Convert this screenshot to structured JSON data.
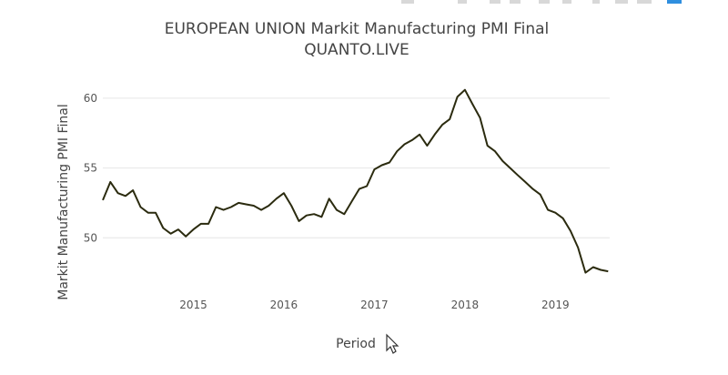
{
  "chart_data": {
    "type": "line",
    "title": "EUROPEAN UNION Markit Manufacturing PMI Final",
    "subtitle": "QUANTO.LIVE",
    "xlabel": "Period",
    "ylabel": "Markit Manufacturing PMI Final",
    "xlim": [
      2014.0,
      2019.6
    ],
    "ylim": [
      46.3,
      61.3
    ],
    "x_ticks": [
      {
        "value": 2015,
        "label": "2015"
      },
      {
        "value": 2016,
        "label": "2016"
      },
      {
        "value": 2017,
        "label": "2017"
      },
      {
        "value": 2018,
        "label": "2018"
      },
      {
        "value": 2019,
        "label": "2019"
      }
    ],
    "y_ticks": [
      {
        "value": 50,
        "label": "50"
      },
      {
        "value": 55,
        "label": "55"
      },
      {
        "value": 60,
        "label": "60"
      }
    ],
    "grid": true,
    "series": [
      {
        "name": "Markit Manufacturing PMI Final",
        "color": "#2b2b0f",
        "x": [
          2014.0,
          2014.083,
          2014.167,
          2014.25,
          2014.333,
          2014.417,
          2014.5,
          2014.583,
          2014.667,
          2014.75,
          2014.833,
          2014.917,
          2015.0,
          2015.083,
          2015.167,
          2015.25,
          2015.333,
          2015.417,
          2015.5,
          2015.583,
          2015.667,
          2015.75,
          2015.833,
          2015.917,
          2016.0,
          2016.083,
          2016.167,
          2016.25,
          2016.333,
          2016.417,
          2016.5,
          2016.583,
          2016.667,
          2016.75,
          2016.833,
          2016.917,
          2017.0,
          2017.083,
          2017.167,
          2017.25,
          2017.333,
          2017.417,
          2017.5,
          2017.583,
          2017.667,
          2017.75,
          2017.833,
          2017.917,
          2018.0,
          2018.083,
          2018.167,
          2018.25,
          2018.333,
          2018.417,
          2018.5,
          2018.583,
          2018.667,
          2018.75,
          2018.833,
          2018.917,
          2019.0,
          2019.083,
          2019.167,
          2019.25,
          2019.333,
          2019.417,
          2019.5,
          2019.583
        ],
        "y": [
          52.7,
          54.0,
          53.2,
          53.0,
          53.4,
          52.2,
          51.8,
          51.8,
          50.7,
          50.3,
          50.6,
          50.1,
          50.6,
          51.0,
          51.0,
          52.2,
          52.0,
          52.2,
          52.5,
          52.4,
          52.3,
          52.0,
          52.3,
          52.8,
          53.2,
          52.3,
          51.2,
          51.6,
          51.7,
          51.5,
          52.8,
          52.0,
          51.7,
          52.6,
          53.5,
          53.7,
          54.9,
          55.2,
          55.4,
          56.2,
          56.7,
          57.0,
          57.4,
          56.6,
          57.4,
          58.1,
          58.5,
          60.1,
          60.6,
          59.6,
          58.6,
          56.6,
          56.2,
          55.5,
          55.0,
          54.5,
          54.0,
          53.5,
          53.1,
          52.0,
          51.8,
          51.4,
          50.5,
          49.3,
          47.5,
          47.9,
          47.7,
          47.6
        ]
      }
    ]
  },
  "modebar": {
    "buttons": [
      "camera-icon",
      "zoom-icon",
      "pan-icon",
      "zoom-in-icon",
      "zoom-out-icon",
      "autoscale-icon",
      "reset-axes-icon",
      "spike-lines-icon",
      "hover-closest-icon",
      "hover-compare-icon"
    ],
    "logo_color": "#2f8fdf"
  }
}
